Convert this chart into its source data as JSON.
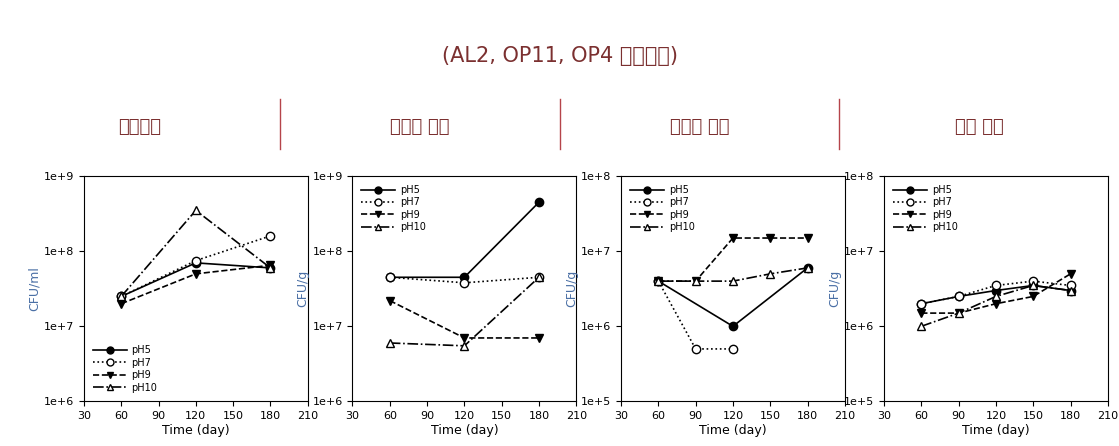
{
  "title": "(AL2, OP11, OP4 혼합균주)",
  "subtitles": [
    "액상제제",
    "부식토 제제",
    "규조토 제제",
    "토양 제제"
  ],
  "ylabel_1": "CFU/ml",
  "ylabel_234": "CFU/g",
  "xlabel": "Time (day)",
  "header_bg": "#b5444a",
  "title_color": "#7b3030",
  "subtitle_color": "#7b3030",
  "axis_label_color": "#4a6fa5",
  "plots": [
    {
      "ylim": [
        1000000.0,
        1000000000.0
      ],
      "yticks": [
        1000000.0,
        10000000.0,
        100000000.0,
        1000000000.0
      ],
      "xticks": [
        30,
        60,
        90,
        120,
        150,
        180,
        210
      ],
      "xlim": [
        30,
        210
      ],
      "legend_loc": "lower left",
      "series": {
        "pH5": {
          "x": [
            60,
            120,
            180
          ],
          "y": [
            25000000.0,
            70000000.0,
            60000000.0
          ]
        },
        "pH7": {
          "x": [
            60,
            120,
            180
          ],
          "y": [
            25000000.0,
            75000000.0,
            160000000.0
          ]
        },
        "pH9": {
          "x": [
            60,
            120,
            180
          ],
          "y": [
            20000000.0,
            50000000.0,
            65000000.0
          ]
        },
        "pH10": {
          "x": [
            60,
            120,
            180
          ],
          "y": [
            25000000.0,
            350000000.0,
            60000000.0
          ]
        }
      }
    },
    {
      "ylim": [
        1000000.0,
        1000000000.0
      ],
      "yticks": [
        1000000.0,
        10000000.0,
        100000000.0,
        1000000000.0
      ],
      "xticks": [
        30,
        60,
        90,
        120,
        150,
        180,
        210
      ],
      "xlim": [
        30,
        210
      ],
      "legend_loc": "upper left",
      "series": {
        "pH5": {
          "x": [
            60,
            120,
            180
          ],
          "y": [
            45000000.0,
            45000000.0,
            450000000.0
          ]
        },
        "pH7": {
          "x": [
            60,
            120,
            180
          ],
          "y": [
            45000000.0,
            38000000.0,
            45000000.0
          ]
        },
        "pH9": {
          "x": [
            60,
            120,
            180
          ],
          "y": [
            22000000.0,
            7000000.0,
            7000000.0
          ]
        },
        "pH10": {
          "x": [
            60,
            120,
            180
          ],
          "y": [
            6000000.0,
            5500000.0,
            45000000.0
          ]
        }
      }
    },
    {
      "ylim": [
        100000.0,
        100000000.0
      ],
      "yticks": [
        100000.0,
        1000000.0,
        10000000.0,
        100000000.0
      ],
      "xticks": [
        30,
        60,
        90,
        120,
        150,
        180,
        210
      ],
      "xlim": [
        30,
        210
      ],
      "legend_loc": "upper left",
      "series": {
        "pH5": {
          "x": [
            60,
            120,
            180
          ],
          "y": [
            4000000.0,
            1000000.0,
            6000000.0
          ]
        },
        "pH7": {
          "x": [
            60,
            90,
            120
          ],
          "y": [
            4000000.0,
            500000.0,
            500000.0
          ]
        },
        "pH9": {
          "x": [
            60,
            90,
            120,
            150,
            180
          ],
          "y": [
            4000000.0,
            4000000.0,
            15000000.0,
            15000000.0,
            15000000.0
          ]
        },
        "pH10": {
          "x": [
            60,
            90,
            120,
            150,
            180
          ],
          "y": [
            4000000.0,
            4000000.0,
            4000000.0,
            5000000.0,
            6000000.0
          ]
        }
      }
    },
    {
      "ylim": [
        100000.0,
        100000000.0
      ],
      "yticks": [
        100000.0,
        1000000.0,
        10000000.0,
        100000000.0
      ],
      "xticks": [
        30,
        60,
        90,
        120,
        150,
        180,
        210
      ],
      "xlim": [
        30,
        210
      ],
      "legend_loc": "upper left",
      "series": {
        "pH5": {
          "x": [
            60,
            90,
            120,
            150,
            180
          ],
          "y": [
            2000000.0,
            2500000.0,
            3000000.0,
            3500000.0,
            3000000.0
          ]
        },
        "pH7": {
          "x": [
            60,
            90,
            120,
            150,
            180
          ],
          "y": [
            2000000.0,
            2500000.0,
            3500000.0,
            4000000.0,
            3500000.0
          ]
        },
        "pH9": {
          "x": [
            60,
            90,
            120,
            150,
            180
          ],
          "y": [
            1500000.0,
            1500000.0,
            2000000.0,
            2500000.0,
            5000000.0
          ]
        },
        "pH10": {
          "x": [
            60,
            90,
            120,
            150,
            180
          ],
          "y": [
            1000000.0,
            1500000.0,
            2500000.0,
            3500000.0,
            3000000.0
          ]
        }
      }
    }
  ],
  "line_styles": {
    "pH5": {
      "linestyle": "-",
      "marker": "o",
      "markerfacecolor": "black",
      "markersize": 6
    },
    "pH7": {
      "linestyle": ":",
      "marker": "o",
      "markerfacecolor": "white",
      "markersize": 6
    },
    "pH9": {
      "linestyle": "--",
      "marker": "v",
      "markerfacecolor": "black",
      "markersize": 6
    },
    "pH10": {
      "linestyle": "-.",
      "marker": "^",
      "markerfacecolor": "white",
      "markersize": 6
    }
  }
}
